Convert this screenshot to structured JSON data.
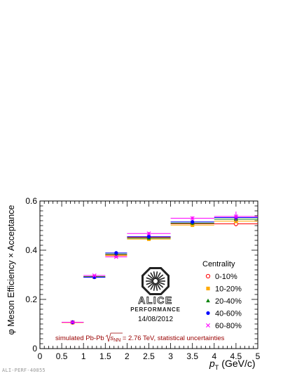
{
  "chart_data": {
    "type": "scatter",
    "xlabel_italic": "p",
    "xlabel_sub": "T",
    "xlabel_unit": "(GeV/c)",
    "ylabel": "φ Meson Efficiency × Acceptance",
    "xlim": [
      0,
      5
    ],
    "ylim": [
      0,
      0.6
    ],
    "x_ticks": [
      "0",
      "0.5",
      "1",
      "1.5",
      "2",
      "2.5",
      "3",
      "3.5",
      "4",
      "4.5",
      "5"
    ],
    "y_ticks": [
      "0",
      "0.2",
      "0.4",
      "0.6"
    ],
    "bins": [
      [
        0.5,
        1.0
      ],
      [
        1.0,
        1.5
      ],
      [
        1.5,
        2.0
      ],
      [
        2.0,
        3.0
      ],
      [
        3.0,
        4.0
      ],
      [
        4.0,
        5.0
      ]
    ],
    "x": [
      0.75,
      1.25,
      1.75,
      2.5,
      3.5,
      4.5
    ],
    "legend_title": "Centrality",
    "series": [
      {
        "name": "0-10%",
        "color": "#ff0000",
        "marker": "open-circle",
        "values": [
          0.106,
          0.292,
          0.38,
          0.452,
          0.508,
          0.507
        ],
        "errors": [
          0.003,
          0.004,
          0.005,
          0.006,
          0.008,
          0.01
        ]
      },
      {
        "name": "10-20%",
        "color": "#ffaa00",
        "marker": "square",
        "values": [
          0.106,
          0.291,
          0.378,
          0.445,
          0.502,
          0.518
        ],
        "errors": [
          0.003,
          0.004,
          0.005,
          0.006,
          0.008,
          0.01
        ]
      },
      {
        "name": "20-40%",
        "color": "#008000",
        "marker": "triangle",
        "values": [
          0.107,
          0.292,
          0.384,
          0.449,
          0.51,
          0.526
        ],
        "errors": [
          0.003,
          0.004,
          0.005,
          0.006,
          0.008,
          0.01
        ]
      },
      {
        "name": "40-60%",
        "color": "#0000ff",
        "marker": "circle",
        "values": [
          0.107,
          0.29,
          0.389,
          0.455,
          0.515,
          0.533
        ],
        "errors": [
          0.003,
          0.004,
          0.005,
          0.006,
          0.008,
          0.015
        ]
      },
      {
        "name": "60-80%",
        "color": "#ff00ff",
        "marker": "cross",
        "values": [
          0.107,
          0.297,
          0.373,
          0.468,
          0.53,
          0.537
        ],
        "errors": [
          0.003,
          0.004,
          0.005,
          0.006,
          0.008,
          0.02
        ]
      }
    ],
    "annotation_parts": [
      "simulated Pb-Pb ",
      "s",
      "NN",
      " = 2.76 TeV, statistical uncertainties"
    ],
    "logo_line1": "ALICE",
    "logo_line2": "PERFORMANCE",
    "logo_date": "14/08/2012"
  },
  "colors": {
    "annotation": "#990000"
  },
  "footer_id": "ALI-PERF-40855"
}
